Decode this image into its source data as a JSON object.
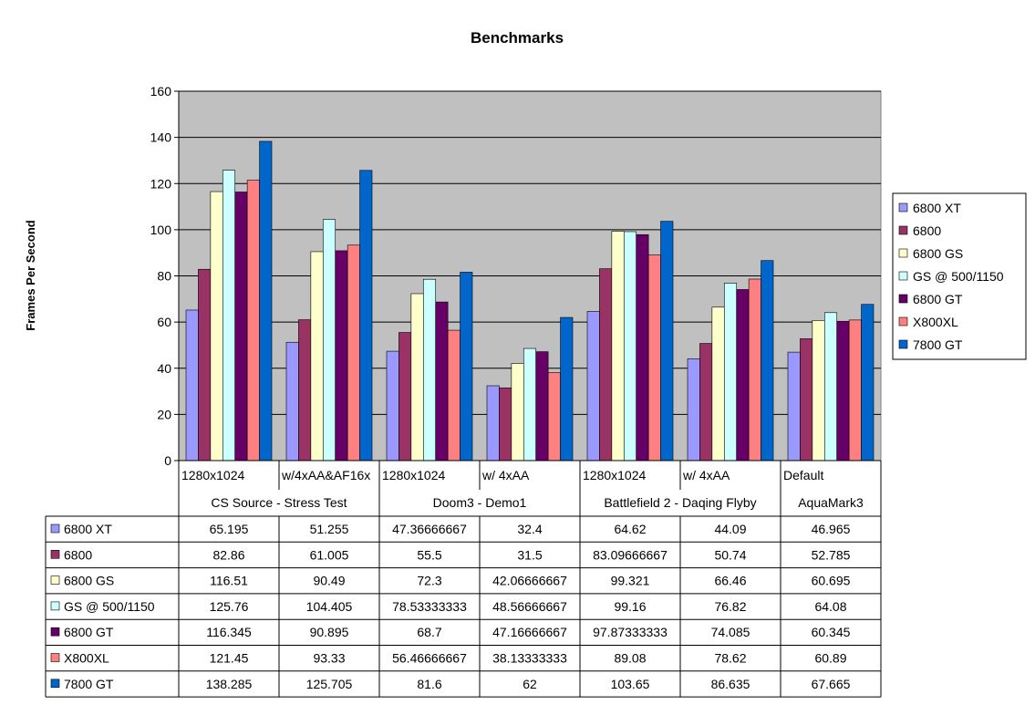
{
  "chart_data": {
    "type": "bar",
    "title": "Benchmarks",
    "ylabel": "Frames Per Second",
    "ylim": [
      0,
      160
    ],
    "y_ticks": [
      "0",
      "20",
      "40",
      "60",
      "80",
      "100",
      "120",
      "140",
      "160"
    ],
    "grid": true,
    "legend_position": "right",
    "categories": [
      "1280x1024",
      "w/4xAA&AF16x",
      "1280x1024",
      "w/ 4xAA",
      "1280x1024",
      "w/ 4xAA",
      "Default"
    ],
    "groups": [
      {
        "label": "CS Source - Stress Test",
        "span": 2
      },
      {
        "label": "Doom3 - Demo1",
        "span": 2
      },
      {
        "label": "Battlefield 2 - Daqing Flyby",
        "span": 2
      },
      {
        "label": "AquaMark3",
        "span": 1
      }
    ],
    "series": [
      {
        "name": "6800 XT",
        "color": "#9999FF",
        "values": [
          65.195,
          51.255,
          47.36666667,
          32.4,
          64.62,
          44.09,
          46.965
        ],
        "labels": [
          "65.195",
          "51.255",
          "47.36666667",
          "32.4",
          "64.62",
          "44.09",
          "46.965"
        ]
      },
      {
        "name": "6800",
        "color": "#993366",
        "values": [
          82.86,
          61.005,
          55.5,
          31.5,
          83.09666667,
          50.74,
          52.785
        ],
        "labels": [
          "82.86",
          "61.005",
          "55.5",
          "31.5",
          "83.09666667",
          "50.74",
          "52.785"
        ]
      },
      {
        "name": "6800 GS",
        "color": "#FFFFCC",
        "values": [
          116.51,
          90.49,
          72.3,
          42.06666667,
          99.321,
          66.46,
          60.695
        ],
        "labels": [
          "116.51",
          "90.49",
          "72.3",
          "42.06666667",
          "99.321",
          "66.46",
          "60.695"
        ]
      },
      {
        "name": "GS @ 500/1150",
        "color": "#CCFFFF",
        "values": [
          125.76,
          104.405,
          78.53333333,
          48.56666667,
          99.16,
          76.82,
          64.08
        ],
        "labels": [
          "125.76",
          "104.405",
          "78.53333333",
          "48.56666667",
          "99.16",
          "76.82",
          "64.08"
        ]
      },
      {
        "name": "6800 GT",
        "color": "#660066",
        "values": [
          116.345,
          90.895,
          68.7,
          47.16666667,
          97.87333333,
          74.085,
          60.345
        ],
        "labels": [
          "116.345",
          "90.895",
          "68.7",
          "47.16666667",
          "97.87333333",
          "74.085",
          "60.345"
        ]
      },
      {
        "name": "X800XL",
        "color": "#FF8080",
        "values": [
          121.45,
          93.33,
          56.46666667,
          38.13333333,
          89.08,
          78.62,
          60.89
        ],
        "labels": [
          "121.45",
          "93.33",
          "56.46666667",
          "38.13333333",
          "89.08",
          "78.62",
          "60.89"
        ]
      },
      {
        "name": "7800 GT",
        "color": "#0066CC",
        "values": [
          138.285,
          125.705,
          81.6,
          62,
          103.65,
          86.635,
          67.665
        ],
        "labels": [
          "138.285",
          "125.705",
          "81.6",
          "62",
          "103.65",
          "86.635",
          "67.665"
        ]
      }
    ],
    "colors": {
      "plot_background": "#C0C0C0",
      "gridline": "#000000"
    }
  }
}
